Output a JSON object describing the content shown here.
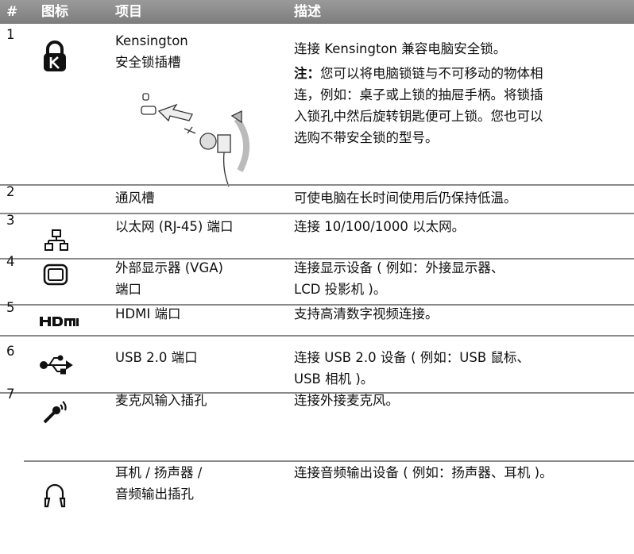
{
  "table": {
    "header": [
      "#",
      "图标",
      "项目",
      "描述"
    ],
    "rows": [
      {
        "number": "1",
        "item": [
          "Kensington",
          "安全锁插槽"
        ],
        "description": [
          "连接 Kensington 兼容电脑安全锁。"
        ],
        "note": {
          "label": "注：",
          "lines": [
            "您可以将电脑锁链与不可移动的物体相",
            "连，例如：桌子或上锁的抽屉手柄。将锁插",
            "入锁孔中然后旋转钥匙便可上锁。您也可以",
            "选购不带安全锁的型号。"
          ]
        }
      },
      {
        "number": "2",
        "item": [
          "通风槽"
        ],
        "description": [
          "可使电脑在长时间使用后仍保持低温。"
        ]
      },
      {
        "number": "3",
        "item": [
          "以太网 (RJ-45) 端口"
        ],
        "description": [
          "连接 10/100/1000 以太网。"
        ]
      },
      {
        "number": "4",
        "item": [
          "外部显示器 (VGA)",
          "端口"
        ],
        "description": [
          "连接显示设备 ( 例如：外接显示器、",
          "LCD 投影机 )。"
        ]
      },
      {
        "number": "5",
        "item": [
          "HDMI 端口"
        ],
        "description": [
          "支持高清数字视频连接。"
        ]
      },
      {
        "number": "6",
        "item": [
          "USB 2.0 端口"
        ],
        "description": [
          "连接 USB 2.0 设备 ( 例如：USB 鼠标、",
          "USB 相机 )。"
        ]
      },
      {
        "number": "7",
        "item": [
          "麦克风输入插孔"
        ],
        "description": [
          "连接外接麦克风。"
        ]
      },
      {
        "item": [
          "耳机 / 扬声器 /",
          "音频输出插孔"
        ],
        "description": [
          "连接音频输出设备 ( 例如：扬声器、耳机 )。"
        ]
      }
    ]
  }
}
